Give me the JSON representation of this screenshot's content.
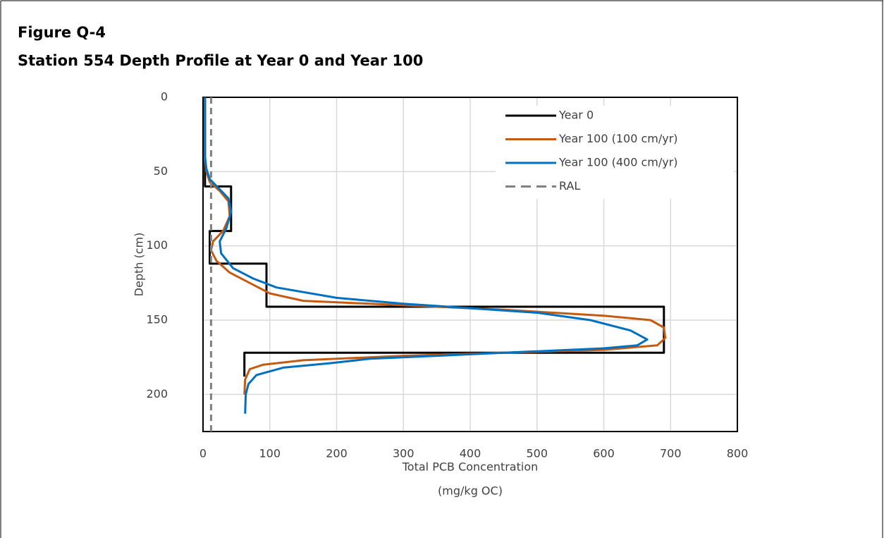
{
  "chart_data": {
    "type": "line",
    "title": "Figure Q-4",
    "subtitle": "Station 554 Depth Profile at Year 0 and Year 100",
    "x_label": [
      "Total PCB Concentration",
      "(mg/kg OC)"
    ],
    "y_label": "Depth (cm)",
    "xlim": [
      0,
      800
    ],
    "xticks": [
      0,
      100,
      200,
      300,
      400,
      500,
      600,
      700,
      800
    ],
    "ylim": [
      0,
      225
    ],
    "yticks": [
      0,
      50,
      100,
      150,
      200
    ],
    "y_inverted": true,
    "grid": true,
    "legend": "upper right",
    "series": [
      {
        "name": "Year 0",
        "color": "#000000",
        "x": [
          3,
          3,
          42,
          42,
          10,
          10,
          95,
          95,
          690,
          690,
          62,
          62
        ],
        "y": [
          0,
          60,
          60,
          90,
          90,
          112,
          112,
          141,
          141,
          172,
          172,
          188
        ]
      },
      {
        "name": "Year 100 (100 cm/yr)",
        "color": "#c55a11",
        "x": [
          3,
          3,
          5,
          10,
          25,
          38,
          40,
          30,
          15,
          12,
          20,
          40,
          70,
          100,
          150,
          300,
          450,
          600,
          670,
          690,
          692,
          680,
          600,
          450,
          300,
          150,
          90,
          70,
          63,
          62
        ],
        "y": [
          0,
          40,
          50,
          57,
          63,
          70,
          80,
          90,
          97,
          103,
          110,
          118,
          125,
          132,
          137,
          140,
          143,
          147,
          150,
          155,
          162,
          167,
          170,
          172,
          174,
          177,
          180,
          183,
          190,
          200
        ]
      },
      {
        "name": "Year 100 (400 cm/yr)",
        "color": "#0070c0",
        "x": [
          3,
          3,
          5,
          10,
          25,
          38,
          42,
          35,
          25,
          27,
          45,
          75,
          110,
          200,
          300,
          400,
          500,
          580,
          640,
          665,
          650,
          600,
          450,
          350,
          250,
          190,
          120,
          80,
          68,
          64,
          63
        ],
        "y": [
          0,
          40,
          48,
          55,
          62,
          68,
          77,
          88,
          97,
          105,
          115,
          122,
          128,
          135,
          139,
          142,
          145,
          150,
          157,
          163,
          167,
          169,
          172,
          174,
          176,
          179,
          182,
          187,
          193,
          200,
          213
        ]
      },
      {
        "name": "RAL",
        "color": "#808080",
        "dashed": true,
        "x": [
          12,
          12
        ],
        "y": [
          0,
          225
        ]
      }
    ]
  }
}
